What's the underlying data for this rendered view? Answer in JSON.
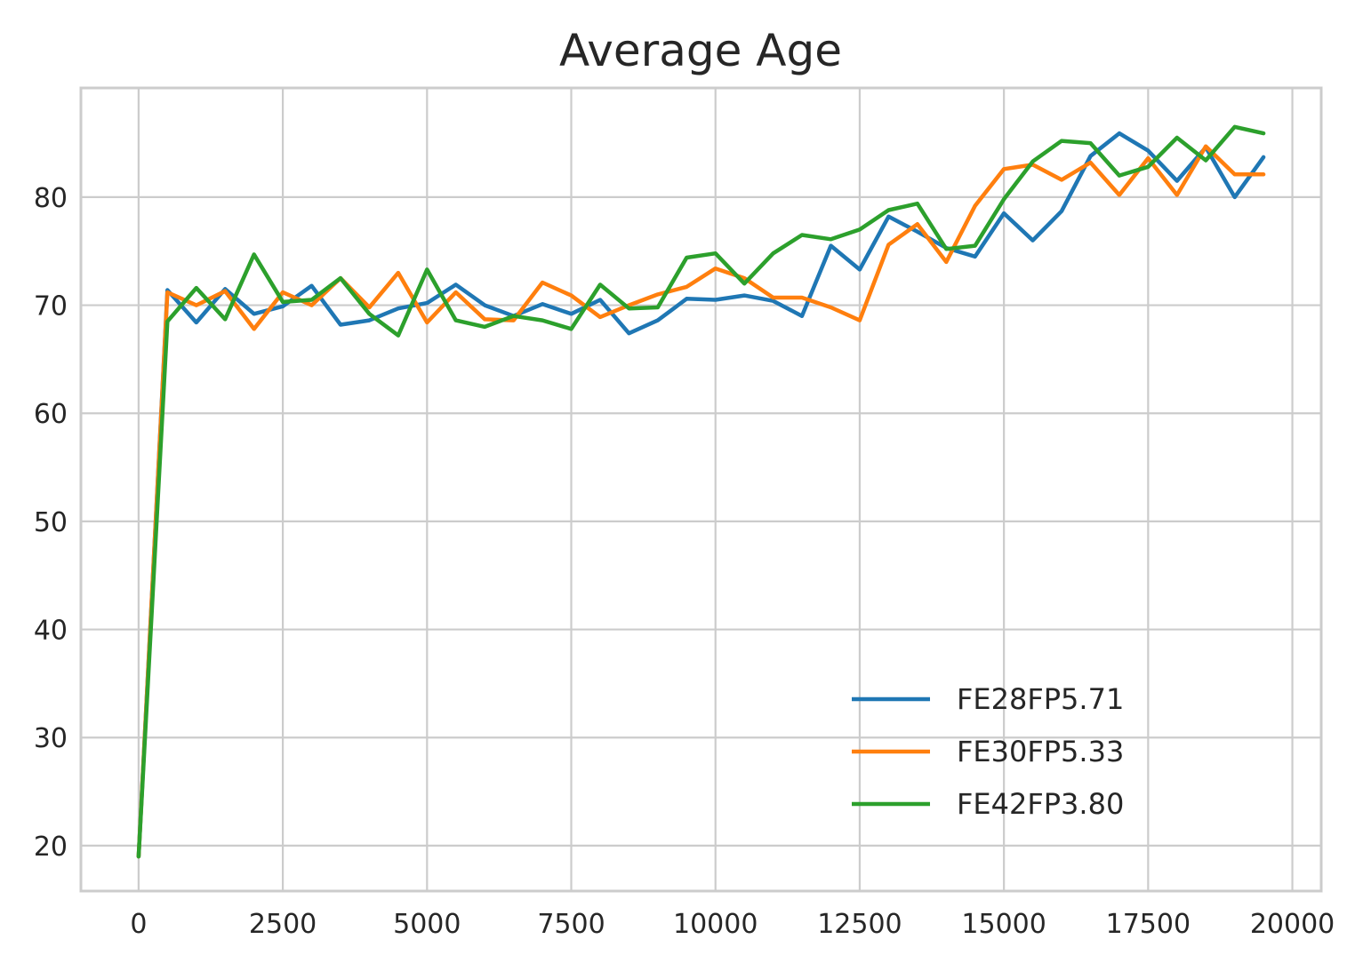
{
  "chart_data": {
    "type": "line",
    "title": "Average Age",
    "xlabel": "",
    "ylabel": "",
    "xlim": [
      -1000,
      20500
    ],
    "ylim": [
      15.8,
      90.1
    ],
    "xticks": [
      0,
      2500,
      5000,
      7500,
      10000,
      12500,
      15000,
      17500,
      20000
    ],
    "yticks": [
      20,
      30,
      40,
      50,
      60,
      70,
      80
    ],
    "xtick_labels": [
      "0",
      "2500",
      "5000",
      "7500",
      "10000",
      "12500",
      "15000",
      "17500",
      "20000"
    ],
    "ytick_labels": [
      "20",
      "30",
      "40",
      "50",
      "60",
      "70",
      "80"
    ],
    "grid": true,
    "legend": {
      "position": "lower-right"
    },
    "x": [
      0,
      500,
      1000,
      1500,
      2000,
      2500,
      3000,
      3500,
      4000,
      4500,
      5000,
      5500,
      6000,
      6500,
      7000,
      7500,
      8000,
      8500,
      9000,
      9500,
      10000,
      10500,
      11000,
      11500,
      12000,
      12500,
      13000,
      13500,
      14000,
      14500,
      15000,
      15500,
      16000,
      16500,
      17000,
      17500,
      18000,
      18500,
      19000,
      19500
    ],
    "series": [
      {
        "name": "FE28FP5.71",
        "color": "#1f77b4",
        "values": [
          19.0,
          71.4,
          68.4,
          71.5,
          69.2,
          69.9,
          71.8,
          68.2,
          68.6,
          69.7,
          70.2,
          71.9,
          70.0,
          69.0,
          70.1,
          69.2,
          70.5,
          67.4,
          68.6,
          70.6,
          70.5,
          70.9,
          70.4,
          69.0,
          75.5,
          73.3,
          78.2,
          76.8,
          75.3,
          74.5,
          78.5,
          76.0,
          78.7,
          83.8,
          85.9,
          84.3,
          81.5,
          84.6,
          80.0,
          83.7
        ]
      },
      {
        "name": "FE30FP5.33",
        "color": "#ff7f0e",
        "values": [
          19.0,
          71.2,
          70.0,
          71.3,
          67.8,
          71.2,
          70.0,
          72.5,
          69.8,
          73.0,
          68.4,
          71.2,
          68.7,
          68.6,
          72.1,
          70.9,
          68.9,
          70.0,
          71.0,
          71.7,
          73.4,
          72.5,
          70.7,
          70.7,
          69.8,
          68.6,
          75.6,
          77.5,
          74.0,
          79.2,
          82.6,
          83.0,
          81.6,
          83.2,
          80.2,
          83.6,
          80.2,
          84.7,
          82.1,
          82.1
        ]
      },
      {
        "name": "FE42FP3.80",
        "color": "#2ca02c",
        "values": [
          19.0,
          68.5,
          71.6,
          68.7,
          74.7,
          70.3,
          70.5,
          72.5,
          69.2,
          67.2,
          73.3,
          68.6,
          68.0,
          69.0,
          68.6,
          67.8,
          71.9,
          69.7,
          69.8,
          74.4,
          74.8,
          72.0,
          74.8,
          76.5,
          76.1,
          77.0,
          78.8,
          79.4,
          75.2,
          75.5,
          79.8,
          83.3,
          85.2,
          85.0,
          82.0,
          82.8,
          85.5,
          83.4,
          86.5,
          85.9
        ]
      }
    ]
  }
}
